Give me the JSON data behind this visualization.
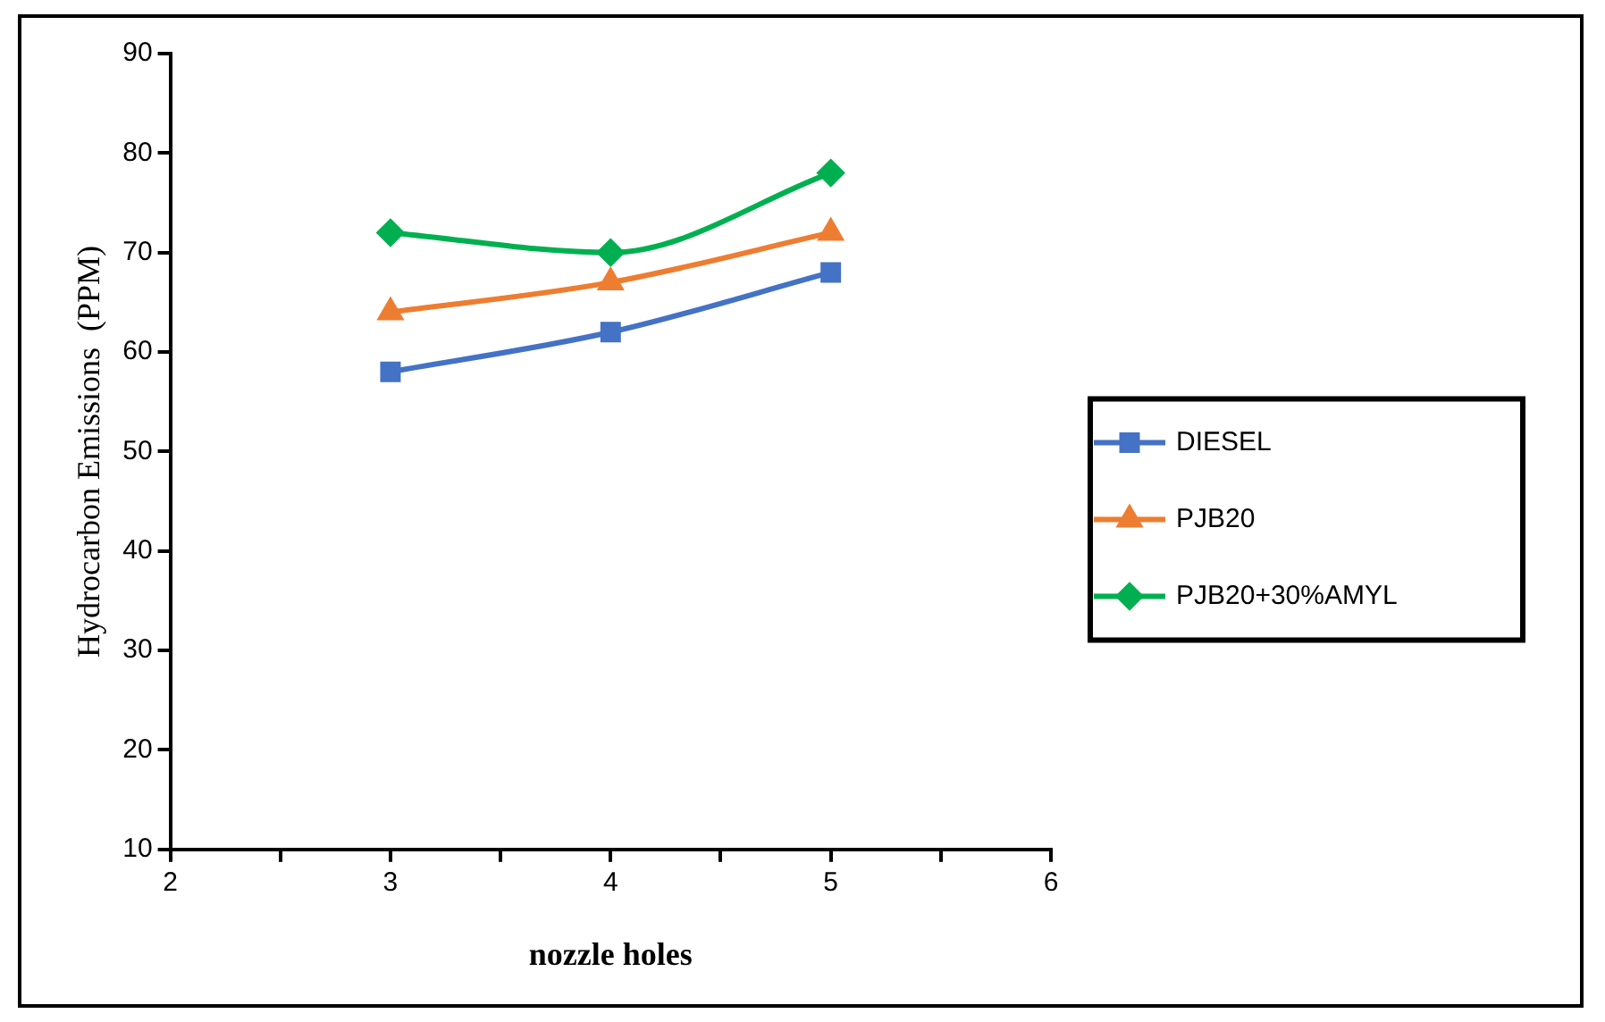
{
  "chart_data": {
    "type": "line",
    "xlabel": "nozzle holes",
    "ylabel": "Hydrocarbon Emissions  (PPM)",
    "x": [
      3,
      4,
      5
    ],
    "series": [
      {
        "name": "DIESEL",
        "color": "#4472c4",
        "marker": "square",
        "values": [
          58,
          62,
          68
        ]
      },
      {
        "name": "PJB20",
        "color": "#ed7d31",
        "marker": "triangle",
        "values": [
          64,
          67,
          72
        ]
      },
      {
        "name": "PJB20+30%AMYL",
        "color": "#00b050",
        "marker": "diamond",
        "values": [
          72,
          70,
          78
        ]
      }
    ],
    "xlim": [
      2,
      6
    ],
    "xticks": [
      2,
      {
        "value": 2.5,
        "label": null
      },
      3,
      {
        "value": 3.5,
        "label": null
      },
      4,
      {
        "value": 4.5,
        "label": null
      },
      5,
      {
        "value": 5.5,
        "label": null
      },
      6
    ],
    "ylim": [
      10,
      90
    ],
    "yticks": [
      10,
      20,
      30,
      40,
      50,
      60,
      70,
      80,
      90
    ],
    "grid": false,
    "legend": "right",
    "line_style": "solid"
  }
}
